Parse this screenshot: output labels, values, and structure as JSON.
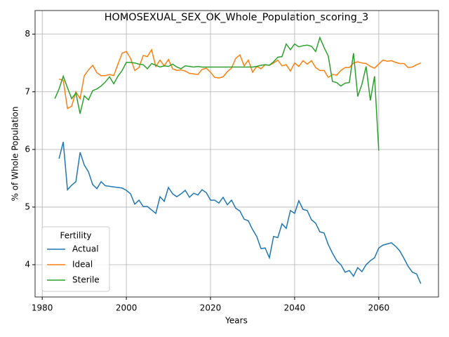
{
  "chart_data": {
    "type": "line",
    "title": "HOMOSEXUAL_SEX_OK_Whole_Population_scoring_3",
    "x_label": "Years",
    "y_label": "% of Whole Population",
    "legend_title": "Fertility",
    "legend_position": "lower left",
    "grid": true,
    "x": [
      1983,
      1984,
      1985,
      1986,
      1987,
      1988,
      1989,
      1990,
      1991,
      1992,
      1993,
      1994,
      1995,
      1996,
      1997,
      1998,
      1999,
      2000,
      2001,
      2002,
      2003,
      2004,
      2005,
      2006,
      2007,
      2008,
      2009,
      2010,
      2011,
      2012,
      2013,
      2014,
      2015,
      2016,
      2017,
      2018,
      2019,
      2020,
      2021,
      2022,
      2023,
      2024,
      2025,
      2026,
      2027,
      2028,
      2029,
      2030,
      2031,
      2032,
      2033,
      2034,
      2035,
      2036,
      2037,
      2038,
      2039,
      2040,
      2041,
      2042,
      2043,
      2044,
      2045,
      2046,
      2047,
      2048,
      2049,
      2050,
      2051,
      2052,
      2053,
      2054,
      2055,
      2056,
      2057,
      2058,
      2059,
      2060,
      2061,
      2062,
      2063,
      2064,
      2065,
      2066,
      2067,
      2068,
      2069,
      2070
    ],
    "series": [
      {
        "name": "Actual",
        "color": "#1f77b4",
        "values": [
          null,
          5.84,
          6.13,
          5.3,
          5.38,
          5.44,
          5.95,
          5.73,
          5.61,
          5.39,
          5.32,
          5.44,
          5.37,
          5.36,
          5.35,
          5.34,
          5.33,
          5.29,
          5.23,
          5.05,
          5.12,
          5.01,
          5.01,
          4.95,
          4.89,
          5.18,
          5.1,
          5.34,
          5.23,
          5.18,
          5.23,
          5.29,
          5.17,
          5.24,
          5.21,
          5.3,
          5.25,
          5.12,
          5.12,
          5.07,
          5.17,
          5.04,
          5.12,
          4.98,
          4.93,
          4.79,
          4.76,
          4.61,
          4.49,
          4.28,
          4.29,
          4.12,
          4.49,
          4.47,
          4.71,
          4.63,
          4.94,
          4.89,
          5.11,
          4.96,
          4.94,
          4.78,
          4.72,
          4.57,
          4.55,
          4.35,
          4.2,
          4.07,
          4.0,
          3.87,
          3.9,
          3.8,
          3.95,
          3.88,
          4.0,
          4.07,
          4.12,
          4.29,
          4.34,
          4.36,
          4.38,
          4.32,
          4.24,
          4.11,
          3.97,
          3.87,
          3.84,
          3.67
        ]
      },
      {
        "name": "Ideal",
        "color": "#ff7f0e",
        "values": [
          null,
          7.22,
          7.2,
          6.71,
          6.75,
          7.0,
          6.88,
          7.28,
          7.38,
          7.46,
          7.33,
          7.28,
          7.28,
          7.3,
          7.28,
          7.48,
          7.67,
          7.7,
          7.58,
          7.37,
          7.42,
          7.63,
          7.61,
          7.73,
          7.44,
          7.55,
          7.45,
          7.56,
          7.4,
          7.37,
          7.38,
          7.36,
          7.32,
          7.31,
          7.3,
          7.39,
          7.41,
          7.34,
          7.25,
          7.24,
          7.26,
          7.35,
          7.41,
          7.58,
          7.64,
          7.45,
          7.55,
          7.34,
          7.44,
          7.4,
          7.47,
          7.46,
          7.5,
          7.55,
          7.45,
          7.47,
          7.36,
          7.5,
          7.44,
          7.54,
          7.48,
          7.54,
          7.42,
          7.37,
          7.37,
          7.25,
          7.3,
          7.29,
          7.37,
          7.42,
          7.42,
          7.5,
          7.52,
          7.5,
          7.49,
          7.44,
          7.41,
          7.48,
          7.55,
          7.53,
          7.54,
          7.51,
          7.49,
          7.49,
          7.42,
          7.43,
          7.47,
          7.5
        ]
      },
      {
        "name": "Sterile",
        "color": "#2ca02c",
        "values": [
          6.88,
          7.05,
          7.27,
          7.07,
          6.88,
          6.98,
          6.62,
          6.93,
          6.86,
          7.02,
          7.05,
          7.1,
          7.17,
          7.26,
          7.14,
          7.27,
          7.37,
          7.51,
          7.51,
          7.5,
          7.48,
          7.47,
          7.4,
          7.49,
          7.46,
          7.43,
          7.45,
          7.44,
          7.48,
          7.43,
          7.4,
          7.45,
          7.44,
          7.43,
          7.44,
          7.43,
          7.43,
          7.43,
          7.43,
          7.43,
          7.43,
          7.43,
          7.43,
          7.43,
          7.43,
          7.43,
          7.43,
          7.43,
          7.44,
          7.46,
          7.47,
          7.46,
          7.52,
          7.6,
          7.61,
          7.83,
          7.73,
          7.83,
          7.78,
          7.8,
          7.81,
          7.79,
          7.7,
          7.94,
          7.77,
          7.62,
          7.18,
          7.16,
          7.1,
          7.15,
          7.16,
          7.67,
          6.92,
          7.13,
          7.44,
          6.85,
          7.27,
          5.98,
          null,
          null,
          null,
          null,
          null,
          null,
          null,
          null,
          null,
          null
        ]
      }
    ],
    "xlim": [
      1978.3,
      2074.2
    ],
    "xticks": [
      1980,
      2000,
      2020,
      2040,
      2060
    ],
    "ylim": [
      3.44,
      8.41
    ],
    "yticks": [
      4,
      5,
      6,
      7,
      8
    ]
  }
}
